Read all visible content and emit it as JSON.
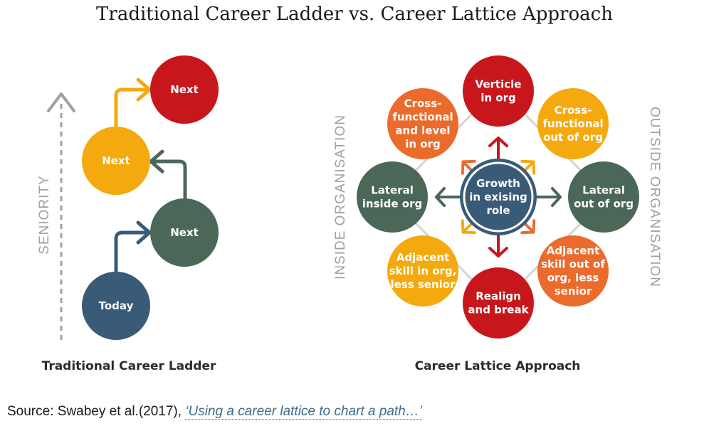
{
  "title": "Traditional Career Ladder vs. Career Lattice Approach",
  "colors": {
    "red": "#c8161d",
    "orange": "#eb6b2c",
    "yellow": "#f4a90f",
    "green": "#4a6758",
    "blue": "#3a5b77",
    "gray": "#a0a0a0"
  },
  "ladder": {
    "axis_label": "SENIORITY",
    "caption": "Traditional Career Ladder",
    "nodes": [
      {
        "id": "today",
        "label": [
          "Today"
        ],
        "color": "blue"
      },
      {
        "id": "next1",
        "label": [
          "Next"
        ],
        "color": "green"
      },
      {
        "id": "next2",
        "label": [
          "Next"
        ],
        "color": "yellow"
      },
      {
        "id": "next3",
        "label": [
          "Next"
        ],
        "color": "red"
      }
    ]
  },
  "lattice": {
    "caption": "Career Lattice Approach",
    "left_label": "INSIDE ORGANISATION",
    "right_label": "OUTSIDE ORGANISATION",
    "center": {
      "label": [
        "Growth",
        "in exising",
        "role"
      ],
      "color": "blue"
    },
    "nodes": [
      {
        "id": "top",
        "label": [
          "Verticle",
          "in org"
        ],
        "color": "red"
      },
      {
        "id": "top-right",
        "label": [
          "Cross-",
          "functional",
          "out of org"
        ],
        "color": "yellow"
      },
      {
        "id": "right",
        "label": [
          "Lateral",
          "out of org"
        ],
        "color": "green"
      },
      {
        "id": "bottom-right",
        "label": [
          "Adjacent",
          "skill out of",
          "org, less",
          "senior"
        ],
        "color": "orange"
      },
      {
        "id": "bottom",
        "label": [
          "Realign",
          "and break"
        ],
        "color": "red"
      },
      {
        "id": "bottom-left",
        "label": [
          "Adjacent",
          "skill in org,",
          "less senior"
        ],
        "color": "yellow"
      },
      {
        "id": "left",
        "label": [
          "Lateral",
          "inside org"
        ],
        "color": "green"
      },
      {
        "id": "top-left",
        "label": [
          "Cross-",
          "functional",
          "and level",
          "in org"
        ],
        "color": "orange"
      }
    ]
  },
  "source": {
    "prefix": "Source: Swabey et al.(2017), ",
    "link_text": "‘Using a career lattice to chart a path…’"
  }
}
